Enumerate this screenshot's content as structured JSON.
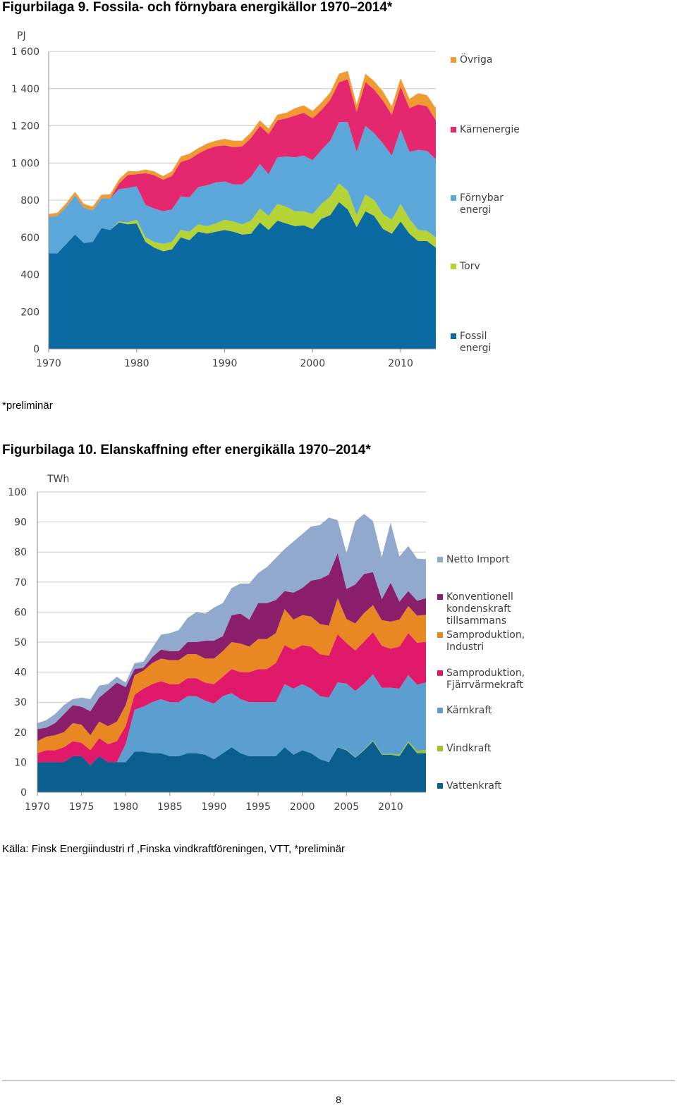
{
  "figure1": {
    "title": "Figurbilaga 9. Fossila- och förnybara energikällor 1970–2014*",
    "note": "*preliminär"
  },
  "figure2": {
    "title": "Figurbilaga 10. Elanskaffning efter energikälla 1970–2014*",
    "source": "Källa: Finsk Energiindustri rf ,Finska vindkraftföreningen, VTT, *preliminär"
  },
  "page_number": "8",
  "chart_data": [
    {
      "type": "area",
      "stacked": true,
      "title": "Figurbilaga 9. Fossila- och förnybara energikällor 1970–2014*",
      "ylabel": "PJ",
      "ylim": [
        0,
        1600
      ],
      "yticks": [
        0,
        200,
        400,
        600,
        800,
        1000,
        1200,
        1400,
        1600
      ],
      "ytick_labels": [
        "0",
        "200",
        "400",
        "600",
        "800",
        "1 000",
        "1 200",
        "1 400",
        "1 600"
      ],
      "xlim": [
        1970,
        2014
      ],
      "xticks": [
        1970,
        1980,
        1990,
        2000,
        2010
      ],
      "grid": "horizontal",
      "legend_position": "right",
      "x": [
        1970,
        1971,
        1972,
        1973,
        1974,
        1975,
        1976,
        1977,
        1978,
        1979,
        1980,
        1981,
        1982,
        1983,
        1984,
        1985,
        1986,
        1987,
        1988,
        1989,
        1990,
        1991,
        1992,
        1993,
        1994,
        1995,
        1996,
        1997,
        1998,
        1999,
        2000,
        2001,
        2002,
        2003,
        2004,
        2005,
        2006,
        2007,
        2008,
        2009,
        2010,
        2011,
        2012,
        2013,
        2014
      ],
      "series": [
        {
          "name": "Fossil energi",
          "color": "#0b6aa2",
          "values": [
            515,
            515,
            565,
            615,
            570,
            575,
            650,
            640,
            680,
            670,
            675,
            575,
            545,
            525,
            535,
            600,
            585,
            630,
            620,
            630,
            640,
            630,
            615,
            620,
            680,
            640,
            690,
            675,
            660,
            665,
            645,
            700,
            720,
            790,
            750,
            655,
            740,
            715,
            645,
            620,
            685,
            620,
            580,
            580,
            545
          ]
        },
        {
          "name": "Torv",
          "color": "#b5d334",
          "values": [
            0,
            0,
            0,
            0,
            0,
            0,
            0,
            0,
            5,
            10,
            20,
            25,
            30,
            40,
            40,
            40,
            45,
            40,
            40,
            45,
            55,
            55,
            55,
            70,
            75,
            75,
            90,
            90,
            80,
            75,
            80,
            80,
            100,
            100,
            100,
            65,
            90,
            85,
            80,
            75,
            95,
            80,
            60,
            55,
            55
          ]
        },
        {
          "name": "Förnybar energi",
          "color": "#5ba7d9",
          "values": [
            195,
            200,
            200,
            210,
            190,
            170,
            160,
            170,
            175,
            185,
            180,
            175,
            180,
            175,
            175,
            180,
            185,
            200,
            220,
            220,
            205,
            200,
            215,
            235,
            240,
            225,
            250,
            270,
            290,
            300,
            290,
            290,
            300,
            330,
            370,
            340,
            370,
            360,
            380,
            345,
            400,
            360,
            430,
            430,
            420
          ]
        },
        {
          "name": "Kärnenergie",
          "color": "#e5276f",
          "values": [
            0,
            0,
            0,
            0,
            0,
            0,
            0,
            0,
            30,
            70,
            65,
            170,
            180,
            170,
            180,
            185,
            205,
            180,
            195,
            195,
            195,
            200,
            205,
            210,
            205,
            215,
            200,
            205,
            225,
            230,
            225,
            215,
            220,
            215,
            230,
            215,
            235,
            235,
            230,
            220,
            230,
            235,
            245,
            240,
            210
          ]
        },
        {
          "name": "Övriga",
          "color": "#f29a32",
          "values": [
            15,
            18,
            20,
            20,
            20,
            20,
            20,
            22,
            22,
            22,
            15,
            20,
            20,
            20,
            25,
            30,
            30,
            30,
            30,
            30,
            35,
            35,
            30,
            30,
            30,
            30,
            30,
            30,
            40,
            40,
            40,
            40,
            40,
            45,
            45,
            40,
            45,
            45,
            50,
            45,
            45,
            50,
            60,
            60,
            65
          ]
        }
      ]
    },
    {
      "type": "area",
      "stacked": true,
      "title": "Figurbilaga 10. Elanskaffning efter energikälla 1970–2014*",
      "ylabel": "TWh",
      "ylim": [
        0,
        100
      ],
      "yticks": [
        0,
        10,
        20,
        30,
        40,
        50,
        60,
        70,
        80,
        90,
        100
      ],
      "xlim": [
        1970,
        2014
      ],
      "xticks": [
        1970,
        1975,
        1980,
        1985,
        1990,
        1995,
        2000,
        2005,
        2010
      ],
      "grid": "horizontal",
      "legend_position": "right",
      "x": [
        1970,
        1971,
        1972,
        1973,
        1974,
        1975,
        1976,
        1977,
        1978,
        1979,
        1980,
        1981,
        1982,
        1983,
        1984,
        1985,
        1986,
        1987,
        1988,
        1989,
        1990,
        1991,
        1992,
        1993,
        1994,
        1995,
        1996,
        1997,
        1998,
        1999,
        2000,
        2001,
        2002,
        2003,
        2004,
        2005,
        2006,
        2007,
        2008,
        2009,
        2010,
        2011,
        2012,
        2013,
        2014
      ],
      "series": [
        {
          "name": "Vattenkraft",
          "color": "#0a5f8f",
          "values": [
            10,
            10,
            10,
            10,
            12,
            12,
            9,
            12,
            10,
            10,
            10,
            13.5,
            13.5,
            13,
            13,
            12,
            12,
            13,
            13,
            12.5,
            11,
            13,
            15,
            13,
            12,
            12,
            12,
            12,
            15,
            12.5,
            14,
            13,
            11,
            10,
            15,
            14,
            11.5,
            14,
            17,
            12.5,
            12.5,
            12,
            16.5,
            13,
            13
          ]
        },
        {
          "name": "Vindkraft",
          "color": "#9ac33c",
          "values": [
            0,
            0,
            0,
            0,
            0,
            0,
            0,
            0,
            0,
            0,
            0,
            0,
            0,
            0,
            0,
            0,
            0,
            0,
            0,
            0,
            0,
            0,
            0,
            0,
            0,
            0,
            0,
            0,
            0,
            0,
            0,
            0,
            0,
            0,
            0.1,
            0.2,
            0.2,
            0.2,
            0.3,
            0.3,
            0.3,
            0.5,
            0.5,
            0.8,
            1.1
          ]
        },
        {
          "name": "Kärnkraft",
          "color": "#5b9fd0",
          "values": [
            0,
            0,
            0,
            0,
            0,
            0,
            0,
            0,
            0,
            0,
            6,
            14,
            15,
            17,
            18,
            18,
            18,
            19,
            19,
            18,
            18.5,
            19,
            18,
            18,
            18,
            18,
            18,
            18,
            21,
            22,
            22,
            21.5,
            21,
            21.5,
            21.5,
            22,
            22,
            22,
            22,
            22,
            22,
            22,
            22,
            22,
            22.5
          ]
        },
        {
          "name": "Samproduktion, Fjärrvärmekraft",
          "color": "#e0196a",
          "values": [
            3,
            4,
            4,
            5,
            5,
            4.5,
            5,
            6,
            6,
            7,
            6,
            5,
            6,
            6,
            6,
            6,
            6,
            6,
            6,
            6,
            6.5,
            6.5,
            8,
            9,
            10,
            11,
            11,
            13,
            13,
            13,
            13,
            14,
            14,
            14,
            16,
            13.5,
            13.5,
            14,
            14,
            14,
            13,
            14,
            14,
            14,
            13.5
          ]
        },
        {
          "name": "Samproduktion, Industri",
          "color": "#e98722",
          "values": [
            4,
            4.5,
            5,
            5,
            6,
            6,
            5,
            5.5,
            6,
            6.5,
            7,
            6.5,
            6,
            7,
            7.5,
            8,
            8,
            8,
            8,
            8,
            8.5,
            8.5,
            9,
            9.5,
            8.5,
            10,
            10,
            10,
            12,
            10,
            10,
            10,
            10,
            10,
            12,
            8,
            9,
            9.5,
            9,
            8.5,
            9,
            9,
            9,
            9,
            9
          ]
        },
        {
          "name": "Konventionell kondenskraft tillsammans",
          "color": "#8b1f6c",
          "values": [
            4,
            3,
            4,
            6,
            6,
            6,
            8,
            8,
            12,
            13,
            6,
            2,
            1,
            2,
            3,
            3,
            3,
            4,
            4,
            6,
            6,
            5,
            9,
            10,
            9,
            12,
            12,
            11,
            6,
            9,
            9,
            12,
            15,
            17,
            15,
            10,
            13,
            13,
            11,
            7,
            13,
            6,
            5,
            5,
            5.5
          ]
        },
        {
          "name": "Netto Import",
          "color": "#90a9cd",
          "values": [
            2,
            2.5,
            3,
            3,
            2,
            3,
            4,
            4,
            2,
            2,
            1.5,
            2,
            2,
            3,
            5,
            6,
            7,
            8,
            10,
            9,
            11,
            11,
            9,
            10,
            12,
            10,
            12,
            14,
            14,
            17,
            18,
            18,
            18,
            19,
            11,
            12,
            21,
            20,
            17,
            14,
            20,
            15,
            15,
            14,
            13
          ]
        }
      ]
    }
  ]
}
